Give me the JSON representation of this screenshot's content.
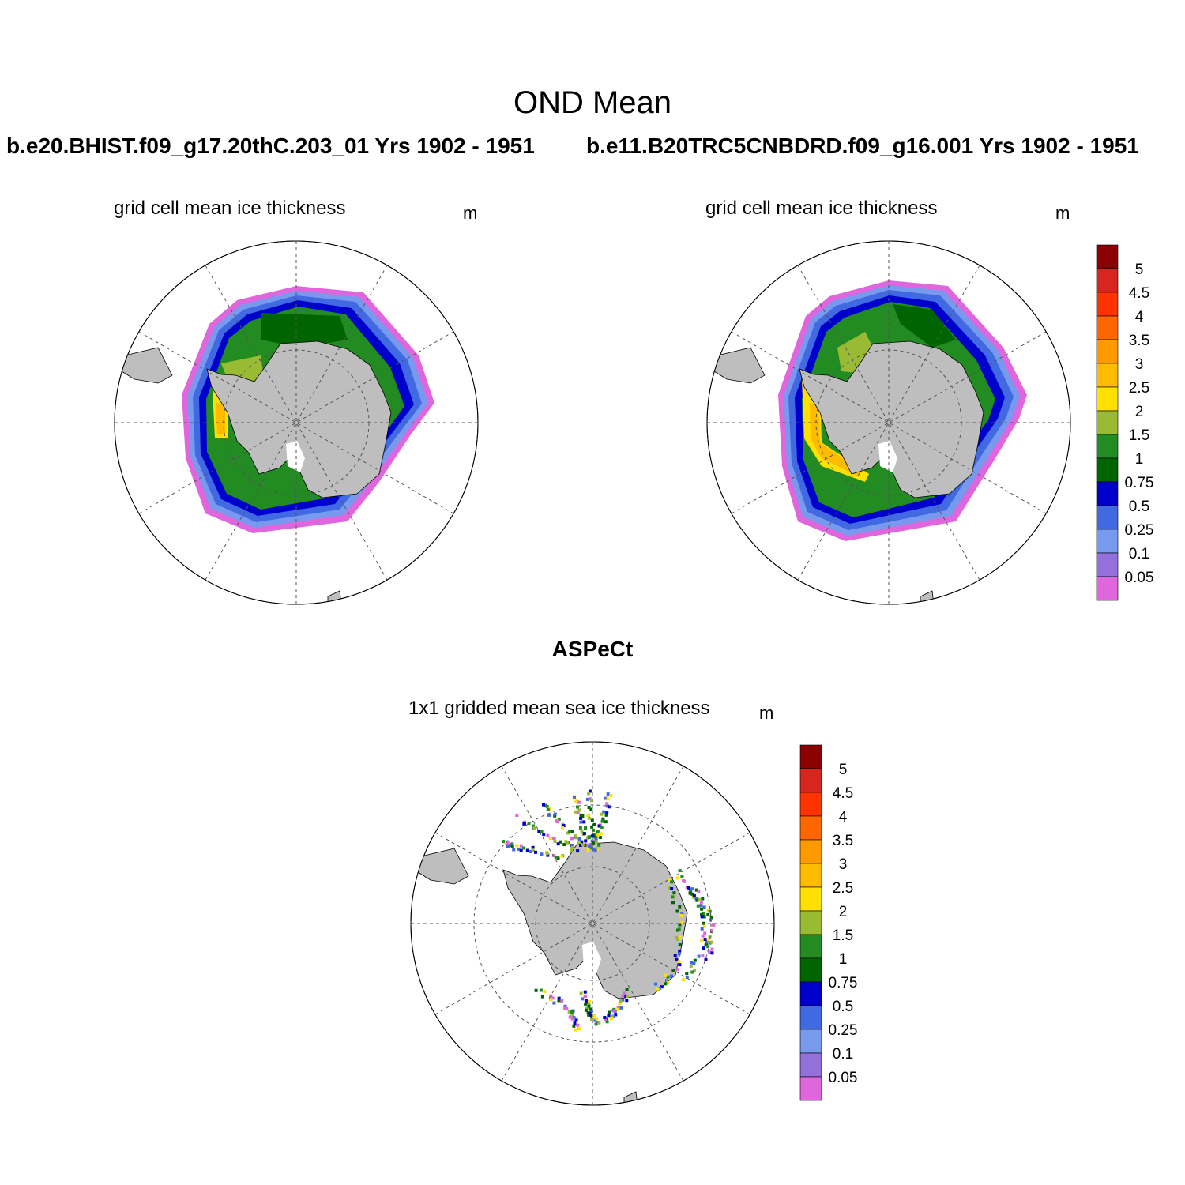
{
  "figure": {
    "title": "OND Mean",
    "case1": "b.e20.BHIST.f09_g17.20thC.203_01  Yrs 1902 - 1951",
    "case2": "b.e11.B20TRC5CNBDRD.f09_g16.001  Yrs 1902 - 1951",
    "observations_title": "ASPeCt"
  },
  "panels": [
    {
      "variable": "grid cell mean ice thickness",
      "units": "m"
    },
    {
      "variable": "grid cell mean ice thickness",
      "units": "m"
    },
    {
      "variable": "1x1 gridded mean sea ice thickness",
      "units": "m"
    }
  ],
  "colorbar": {
    "labels": [
      "5",
      "4.5",
      "4",
      "3.5",
      "3",
      "2.5",
      "2",
      "1.5",
      "1",
      "0.75",
      "0.5",
      "0.25",
      "0.1",
      "0.05"
    ],
    "colors_top_to_bottom": [
      "#8b0000",
      "#d7261e",
      "#ff3300",
      "#ff6600",
      "#ff9900",
      "#ffbb00",
      "#ffe000",
      "#99bb33",
      "#228b22",
      "#006400",
      "#0000cd",
      "#4169e1",
      "#7799ee",
      "#9370db",
      "#e066dd"
    ]
  },
  "colors": {
    "land": "#bebebe",
    "background": "#ffffff"
  },
  "chart_data": {
    "type": "heatmap",
    "projection": "south polar stereographic",
    "season": "OND",
    "units": "m",
    "contour_levels": [
      0.05,
      0.1,
      0.25,
      0.5,
      0.75,
      1,
      1.5,
      2,
      2.5,
      3,
      3.5,
      4,
      4.5,
      5
    ]
  }
}
